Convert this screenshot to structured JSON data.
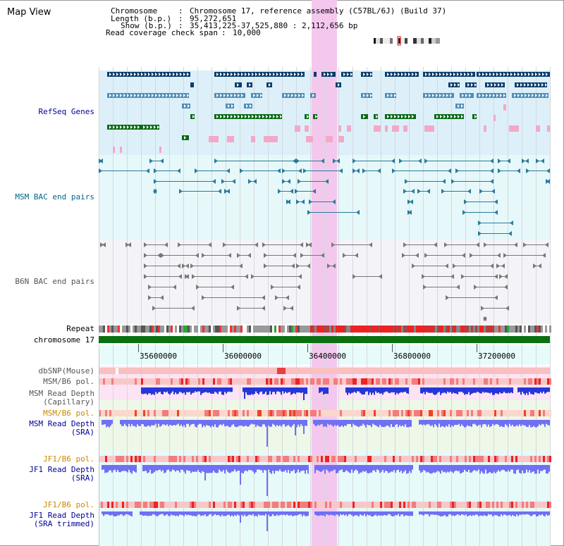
{
  "page": {
    "title": "Map View",
    "info": [
      {
        "key": "Chromosome",
        "value": "Chromosome 17, reference assembly (C57BL/6J) (Build 37)"
      },
      {
        "key": "Length (b.p.)",
        "value": "95,272,651"
      },
      {
        "key": "Show (b.p.)",
        "value": "35,413,225-37,525,880 : 2,112,656 bp"
      },
      {
        "key": "Read coverage check span",
        "value": "10,000"
      }
    ]
  },
  "tracks": {
    "refseq": "RefSeq Genes",
    "msm_bac": "MSM BAC end pairs",
    "b6n_bac": "B6N BAC end pairs",
    "repeat": "Repeat",
    "chromosome": "chromosome 17",
    "dbsnp": "dbSNP(Mouse)",
    "msm_b6_pol_1": "MSM/B6 pol.",
    "msm_depth_cap_1": "MSM Read Depth",
    "msm_depth_cap_2": "(Capillary)",
    "msm_b6_pol_2": "MSM/B6 pol.",
    "msm_depth_sra_1": "MSM Read Depth",
    "msm_depth_sra_2": "(SRA)",
    "jf1_b6_pol_1": "JF1/B6 pol.",
    "jf1_depth_sra_1": "JF1 Read Depth",
    "jf1_depth_sra_2": "(SRA)",
    "jf1_b6_pol_2": "JF1/B6 pol.",
    "jf1_depth_trim_1": "JF1 Read Depth",
    "jf1_depth_trim_2": "(SRA trimmed)"
  },
  "axis": {
    "ticks": [
      "35600000",
      "36000000",
      "36400000",
      "36800000",
      "37200000"
    ]
  },
  "colors": {
    "refseq_bg": "#ddf0fa",
    "msm_bac_bg": "#e6f8fa",
    "b6n_bac_bg": "#f4f4f8",
    "highlight": "#f4c8ee",
    "gene_dark": "#0b3d6b",
    "gene_mid": "#4f8fb8",
    "gene_green": "#0a6a16",
    "gene_pink": "#f4a8c8",
    "msm_bac": "#2a7a9a",
    "b6n_bac": "#777777",
    "chromosome": "#0b7011",
    "depth_capillary": "#2636d8",
    "depth_sra": "#7070f4"
  }
}
